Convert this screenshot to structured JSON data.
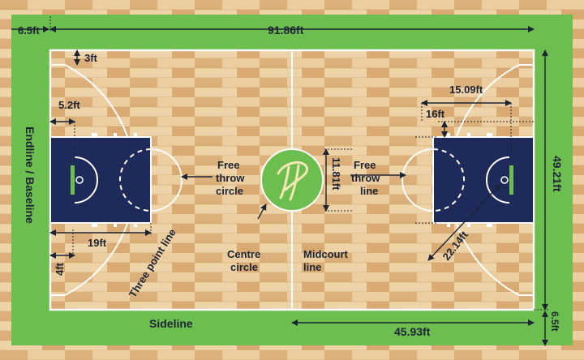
{
  "colors": {
    "surround": "#6cbf4e",
    "wood_light": "#e9c79a",
    "wood_dark": "#d7ab73",
    "line": "#ffffff",
    "key": "#1d2a5a",
    "logo_bg": "#6cbf4e",
    "text": "#1c2433",
    "arrow": "#1c2433"
  },
  "dimensions": {
    "surround_width": "6.5ft",
    "court_length": "91.86ft",
    "court_width": "49.21ft",
    "half_court": "45.93ft",
    "corner_three_offset": "3ft",
    "post_offset": "5.2ft",
    "ring_offset": "4ft",
    "key_length": "19ft",
    "key_width": "16ft",
    "three_point_distance": "15.09ft",
    "three_point_radius": "22.14ft",
    "centre_circle_diameter": "11.81ft",
    "surround_width_bottom": "6.5ft"
  },
  "labels": {
    "endline": "Endline / Baseline",
    "sideline": "Sideline",
    "three_point_line": "Three point line",
    "free_throw_circle_1": "Free",
    "free_throw_circle_2": "throw",
    "free_throw_circle_3": "circle",
    "free_throw_line_1": "Free",
    "free_throw_line_2": "throw",
    "free_throw_line_3": "line",
    "centre_circle_1": "Centre",
    "centre_circle_2": "circle",
    "midcourt_1": "Midcourt",
    "midcourt_2": "line"
  },
  "logo": {
    "text": "tt",
    "name": "club-logo"
  }
}
